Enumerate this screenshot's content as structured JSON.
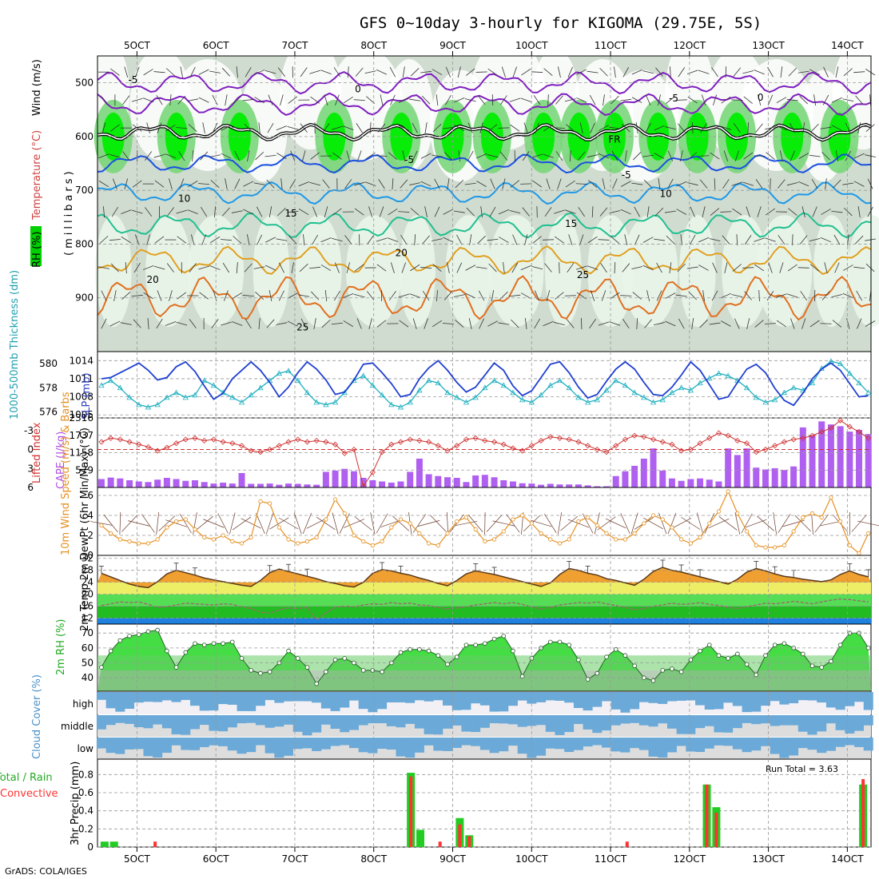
{
  "title": "GFS 0~10day 3-hourly for KIGOMA (29.75E, 5S)",
  "footer": "GrADS: COLA/IGES",
  "colors": {
    "rh_dark": "#00ee00",
    "rh_mid": "#66cc66",
    "rh_light": "#e8f4e8",
    "temp_orange": "#e6a020",
    "temp_blue": "#1e90ff",
    "wind": "#e69020",
    "slp": "#1f3fd0",
    "thick": "#20b0c0",
    "lifted": "#d03030",
    "cape": "#b060f0",
    "cloud": "#6aa9d8",
    "precip_total": "#22cc22",
    "precip_conv": "#ff3333"
  },
  "chart_data": [
    {
      "type": "heatmap",
      "name": "upper-air cross section",
      "ylabel": "(millibars)",
      "legend_labels": [
        "RH (%)",
        "Temperature (°C)",
        "Wind (m/s)"
      ],
      "yticks": [
        500,
        600,
        700,
        800,
        900
      ],
      "ylim": [
        1000,
        450
      ],
      "x_ticks": [
        "5OCT",
        "6OCT",
        "7OCT",
        "8OCT",
        "9OCT",
        "10OCT",
        "11OCT",
        "12OCT",
        "13OCT",
        "14OCT"
      ],
      "contour_labels": [
        {
          "text": "-5",
          "x": 4.95,
          "p": 493,
          "series": "t_-5"
        },
        {
          "text": "0",
          "x": 7.8,
          "p": 510,
          "series": "t_0"
        },
        {
          "text": "-5",
          "x": 11.8,
          "p": 527,
          "series": "t_-5"
        },
        {
          "text": "0",
          "x": 12.9,
          "p": 526,
          "series": "t_0"
        },
        {
          "text": "FR",
          "x": 11.05,
          "p": 604,
          "series": "fr"
        },
        {
          "text": "-5",
          "x": 8.45,
          "p": 642,
          "series": "t_n5"
        },
        {
          "text": "-5",
          "x": 11.2,
          "p": 670,
          "series": "t_n5"
        },
        {
          "text": "10",
          "x": 5.6,
          "p": 714,
          "series": "t_10"
        },
        {
          "text": "10",
          "x": 11.7,
          "p": 705,
          "series": "t_10"
        },
        {
          "text": "15",
          "x": 6.95,
          "p": 741,
          "series": "t_15"
        },
        {
          "text": "15",
          "x": 10.5,
          "p": 761,
          "series": "t_15"
        },
        {
          "text": "20",
          "x": 8.35,
          "p": 815,
          "series": "t_20"
        },
        {
          "text": "20",
          "x": 5.2,
          "p": 865,
          "series": "t_20"
        },
        {
          "text": "25",
          "x": 10.65,
          "p": 856,
          "series": "t_25"
        },
        {
          "text": "25",
          "x": 7.1,
          "p": 953,
          "series": "t_25"
        }
      ]
    },
    {
      "type": "line",
      "name": "thickness and slp",
      "ylabel_left": "1000-500mb Thickness (dm)",
      "ylabel_right": "SLP (mb)",
      "left_ticks": [
        576,
        578,
        580
      ],
      "right_ticks": [
        1005,
        1008,
        1011,
        1014
      ],
      "left_range": [
        575.5,
        581.0
      ],
      "right_range": [
        1004.5,
        1015.5
      ],
      "slp": [
        1011.0,
        1011.2,
        1012.0,
        1012.8,
        1013.6,
        1012.4,
        1010.8,
        1011.2,
        1013.0,
        1013.8,
        1012.2,
        1009.8,
        1007.6,
        1008.6,
        1011.0,
        1012.4,
        1013.8,
        1012.4,
        1010.4,
        1008.0,
        1009.6,
        1012.0,
        1013.8,
        1012.6,
        1010.8,
        1008.4,
        1008.8,
        1010.8,
        1013.4,
        1013.6,
        1012.0,
        1010.2,
        1008.0,
        1008.4,
        1011.0,
        1012.8,
        1014.0,
        1012.4,
        1010.4,
        1008.8,
        1009.6,
        1011.6,
        1013.6,
        1012.4,
        1009.8,
        1008.2,
        1009.0,
        1011.2,
        1013.4,
        1013.8,
        1012.0,
        1009.6,
        1007.8,
        1008.4,
        1010.6,
        1012.6,
        1013.8,
        1012.6,
        1010.4,
        1008.4,
        1008.2,
        1009.6,
        1011.6,
        1013.8,
        1012.4,
        1010.0,
        1007.6,
        1008.0,
        1010.4,
        1012.6,
        1013.4,
        1012.0,
        1009.4,
        1007.4,
        1006.6,
        1008.6,
        1011.0,
        1012.6,
        1013.6,
        1012.4,
        1010.2,
        1008.0,
        1008.2
      ],
      "thickness": [
        578.2,
        578.6,
        578.0,
        577.2,
        576.6,
        576.4,
        576.6,
        577.2,
        577.6,
        577.2,
        577.4,
        578.6,
        578.2,
        577.6,
        577.2,
        576.8,
        577.4,
        578.0,
        578.6,
        579.2,
        579.4,
        578.6,
        577.6,
        576.8,
        576.6,
        576.8,
        577.6,
        578.6,
        579.0,
        578.2,
        577.4,
        576.6,
        576.4,
        576.8,
        577.8,
        578.6,
        578.4,
        577.6,
        577.2,
        576.8,
        577.2,
        578.0,
        578.6,
        578.2,
        577.6,
        577.0,
        576.8,
        577.4,
        578.2,
        578.6,
        578.0,
        577.2,
        576.8,
        577.0,
        577.8,
        578.6,
        578.2,
        577.6,
        577.2,
        576.8,
        577.0,
        577.6,
        578.0,
        577.8,
        578.4,
        578.8,
        579.2,
        579.0,
        578.6,
        578.0,
        577.2,
        576.8,
        577.0,
        577.6,
        578.0,
        577.8,
        578.4,
        579.6,
        580.2,
        580.0,
        579.2,
        578.4,
        577.6
      ]
    },
    {
      "type": "bar",
      "name": "lifted index and cape",
      "ylabel_left": "Lifted Index",
      "ylabel_right": "CAPE (J/kg)",
      "li_ticks": [
        -3,
        0,
        3,
        6
      ],
      "li_range": [
        -5,
        6
      ],
      "cape_ticks": [
        579,
        1158,
        1737,
        2316
      ],
      "cape_range": [
        0,
        2316
      ],
      "lifted_index": [
        -1.2,
        -1.8,
        -1.6,
        -1.2,
        -0.8,
        -0.4,
        0.2,
        -0.3,
        -1.0,
        -1.6,
        -1.8,
        -1.4,
        -1.6,
        -1.2,
        -1.0,
        -0.6,
        0.2,
        0.4,
        0.0,
        -0.6,
        -1.2,
        -1.6,
        -1.2,
        -1.4,
        -1.2,
        -0.8,
        0.6,
        0.0,
        5.8,
        3.6,
        0.4,
        -0.8,
        -1.2,
        -1.6,
        -1.4,
        -1.2,
        -0.6,
        0.2,
        -0.6,
        -1.6,
        -1.8,
        -1.4,
        -1.2,
        -0.8,
        -0.2,
        0.2,
        -0.6,
        -1.4,
        -2.0,
        -1.8,
        -1.6,
        -1.2,
        -0.6,
        0.0,
        0.4,
        -0.6,
        -1.6,
        -2.2,
        -2.0,
        -1.6,
        -1.2,
        -0.8,
        0.2,
        0.0,
        -1.0,
        -1.8,
        -2.6,
        -2.2,
        -1.4,
        -1.0,
        0.4,
        0.0,
        -0.6,
        -1.2,
        -1.6,
        -1.8,
        -2.2,
        -2.8,
        -3.4,
        -4.6,
        -3.6,
        -2.8,
        -1.8
      ],
      "cape": [
        280,
        330,
        300,
        240,
        200,
        180,
        260,
        320,
        280,
        220,
        240,
        180,
        130,
        160,
        130,
        480,
        120,
        120,
        130,
        90,
        130,
        120,
        100,
        90,
        520,
        560,
        620,
        540,
        320,
        240,
        200,
        160,
        200,
        520,
        960,
        440,
        380,
        340,
        320,
        180,
        400,
        420,
        340,
        240,
        200,
        140,
        130,
        90,
        120,
        100,
        100,
        100,
        70,
        40,
        40,
        380,
        540,
        720,
        960,
        1300,
        560,
        300,
        220,
        280,
        300,
        260,
        200,
        1300,
        1080,
        1300,
        660,
        600,
        640,
        580,
        700,
        2000,
        1740,
        2200,
        2100,
        2040,
        1860,
        1920,
        1780
      ]
    },
    {
      "type": "line",
      "name": "10m wind",
      "ylabel": "10m Wind Speed (m/s) & Barbs",
      "yticks": [
        0,
        2,
        4,
        6
      ],
      "ylim": [
        0,
        6.8
      ],
      "speed": [
        3.0,
        2.2,
        1.6,
        1.4,
        1.2,
        1.2,
        1.6,
        2.8,
        3.4,
        3.6,
        2.6,
        1.8,
        1.6,
        2.0,
        1.4,
        1.2,
        1.8,
        5.4,
        5.2,
        2.8,
        1.6,
        1.2,
        1.4,
        1.8,
        3.6,
        5.6,
        4.2,
        2.0,
        1.4,
        1.0,
        1.4,
        2.8,
        3.6,
        3.2,
        2.2,
        1.2,
        1.0,
        2.2,
        3.4,
        3.8,
        2.6,
        1.4,
        1.6,
        2.4,
        3.6,
        4.0,
        3.2,
        2.2,
        1.6,
        1.2,
        1.6,
        3.4,
        3.8,
        3.0,
        2.2,
        1.6,
        1.6,
        2.2,
        3.2,
        4.0,
        3.6,
        2.8,
        1.6,
        1.2,
        1.8,
        3.2,
        4.4,
        6.4,
        4.2,
        2.4,
        1.0,
        0.8,
        0.8,
        1.0,
        2.4,
        3.8,
        4.2,
        3.8,
        5.8,
        3.4,
        1.0,
        0.2,
        2.2
      ]
    },
    {
      "type": "area",
      "name": "2m temperature",
      "ylabel": "2m Temp 2m DewPt (6hr Min/Max) (°C)",
      "yticks": [
        12,
        16,
        20,
        24,
        28,
        32
      ],
      "ylim": [
        10,
        33
      ],
      "temp": [
        27.0,
        25.8,
        24.6,
        23.4,
        22.6,
        22.2,
        24.2,
        26.8,
        28.0,
        27.2,
        26.4,
        25.4,
        24.8,
        24.2,
        23.6,
        23.0,
        22.6,
        24.6,
        27.2,
        28.4,
        27.6,
        26.8,
        26.0,
        25.2,
        24.2,
        23.6,
        22.8,
        22.4,
        24.0,
        27.0,
        28.2,
        27.8,
        27.0,
        26.4,
        25.4,
        24.6,
        23.6,
        22.8,
        24.6,
        26.8,
        27.8,
        27.2,
        26.6,
        25.8,
        25.0,
        24.2,
        23.4,
        22.6,
        23.8,
        26.6,
        28.6,
        28.0,
        27.0,
        26.4,
        25.2,
        24.6,
        23.8,
        23.0,
        25.0,
        27.6,
        29.0,
        28.0,
        27.4,
        26.6,
        25.8,
        25.0,
        24.2,
        23.4,
        25.0,
        27.4,
        28.6,
        27.8,
        26.8,
        26.0,
        25.6,
        25.0,
        24.6,
        24.2,
        24.8,
        26.6,
        27.8,
        26.6,
        25.8
      ],
      "dewpoint": [
        16.2,
        16.8,
        17.4,
        17.2,
        17.4,
        16.6,
        15.6,
        15.8,
        16.4,
        17.0,
        16.8,
        16.6,
        16.4,
        16.8,
        16.6,
        15.8,
        15.2,
        14.0,
        13.6,
        14.8,
        15.4,
        15.2,
        15.6,
        11.4,
        13.8,
        15.6,
        16.0,
        15.8,
        16.4,
        16.8,
        16.6,
        17.2,
        16.8,
        17.0,
        16.4,
        16.2,
        15.6,
        15.0,
        15.4,
        15.8,
        16.4,
        16.8,
        17.2,
        16.8,
        17.2,
        16.6,
        15.8,
        15.0,
        15.6,
        16.4,
        16.8,
        17.2,
        17.0,
        17.4,
        16.8,
        16.2,
        15.6,
        14.8,
        15.2,
        16.0,
        16.4,
        17.0,
        16.6,
        16.8,
        17.2,
        16.6,
        16.2,
        15.6,
        15.2,
        15.8,
        16.4,
        17.0,
        16.8,
        17.2,
        17.6,
        17.2,
        16.8,
        17.4,
        18.0,
        18.4,
        18.2,
        17.8,
        17.4
      ]
    },
    {
      "type": "area",
      "name": "2m relative humidity",
      "ylabel": "2m RH (%)",
      "yticks": [
        40,
        50,
        60,
        70
      ],
      "ylim": [
        31,
        76
      ],
      "rh": [
        47,
        58,
        65,
        68,
        69,
        71,
        72,
        58,
        47,
        57,
        63,
        62,
        63,
        63,
        64,
        53,
        45,
        43,
        44,
        50,
        58,
        53,
        47,
        36,
        44,
        52,
        53,
        50,
        45,
        45,
        44,
        50,
        57,
        59,
        59,
        58,
        55,
        49,
        54,
        62,
        62,
        63,
        66,
        68,
        58,
        41,
        53,
        60,
        64,
        64,
        62,
        52,
        39,
        43,
        54,
        59,
        55,
        48,
        40,
        38,
        45,
        46,
        44,
        52,
        58,
        62,
        55,
        53,
        56,
        49,
        42,
        55,
        62,
        63,
        60,
        56,
        48,
        47,
        51,
        62,
        70,
        70,
        60
      ]
    },
    {
      "type": "area",
      "name": "cloud cover",
      "ylabel": "Cloud Cover (%)",
      "categories": [
        "high",
        "middle",
        "low"
      ]
    },
    {
      "type": "bar",
      "name": "3hr precipitation",
      "ylabel": "3hr Precip (mm)",
      "yticks": [
        0,
        0.2,
        0.4,
        0.6,
        0.8
      ],
      "ylim": [
        0,
        0.9
      ],
      "legend_labels": [
        "Total / Rain",
        "Convective"
      ],
      "annotation": "Run Total = 3.63",
      "events": [
        {
          "x": 4.59,
          "total": 0.06,
          "conv": 0.0
        },
        {
          "x": 4.71,
          "total": 0.06,
          "conv": 0.0
        },
        {
          "x": 5.23,
          "total": 0.0,
          "conv": 0.06
        },
        {
          "x": 8.47,
          "total": 0.82,
          "conv": 0.78
        },
        {
          "x": 8.59,
          "total": 0.19,
          "conv": 0.0
        },
        {
          "x": 8.84,
          "total": 0.0,
          "conv": 0.06
        },
        {
          "x": 9.09,
          "total": 0.32,
          "conv": 0.25
        },
        {
          "x": 9.21,
          "total": 0.13,
          "conv": 0.12
        },
        {
          "x": 11.21,
          "total": 0.0,
          "conv": 0.06
        },
        {
          "x": 12.22,
          "total": 0.69,
          "conv": 0.69
        },
        {
          "x": 12.34,
          "total": 0.44,
          "conv": 0.38
        },
        {
          "x": 14.2,
          "total": 0.69,
          "conv": 0.75
        }
      ]
    }
  ]
}
